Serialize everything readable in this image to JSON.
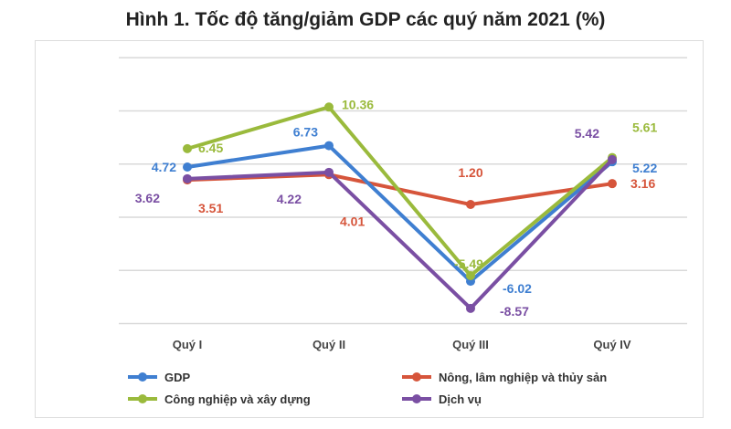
{
  "chart_data": {
    "type": "line",
    "title": "Hình 1. Tốc độ tăng/giảm GDP các quý năm 2021 (%)",
    "categories": [
      "Quý I",
      "Quý II",
      "Quý III",
      "Quý IV"
    ],
    "ylim": [
      -10,
      15
    ],
    "grid": true,
    "legend_position": "bottom",
    "series": [
      {
        "name": "GDP",
        "color": "#3f7fd1",
        "values": [
          4.72,
          6.73,
          -6.02,
          5.22
        ]
      },
      {
        "name": "Nông, lâm nghiệp và thủy sản",
        "color": "#d6553b",
        "values": [
          3.51,
          4.01,
          1.2,
          3.16
        ]
      },
      {
        "name": "Công nghiệp và xây dựng",
        "color": "#9aba3c",
        "values": [
          6.45,
          10.36,
          -5.49,
          5.61
        ]
      },
      {
        "name": "Dịch vụ",
        "color": "#7a4fa3",
        "values": [
          3.62,
          4.22,
          -8.57,
          5.42
        ]
      }
    ]
  }
}
